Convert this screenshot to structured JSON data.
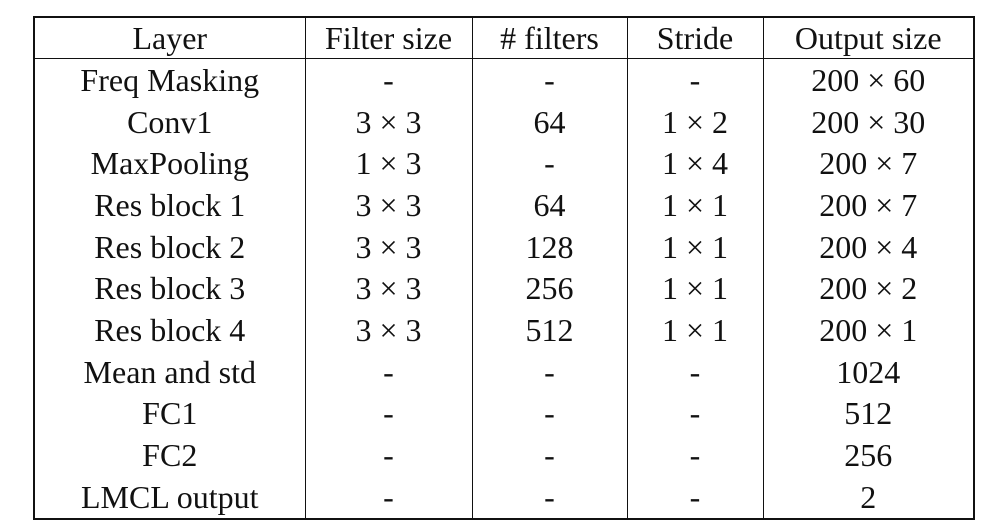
{
  "table": {
    "headers": [
      "Layer",
      "Filter size",
      "# filters",
      "Stride",
      "Output size"
    ],
    "rows": [
      [
        "Freq Masking",
        "-",
        "-",
        "-",
        "200 × 60"
      ],
      [
        "Conv1",
        "3 × 3",
        "64",
        "1 × 2",
        "200 × 30"
      ],
      [
        "MaxPooling",
        "1 × 3",
        "-",
        "1 × 4",
        "200 × 7"
      ],
      [
        "Res block 1",
        "3 × 3",
        "64",
        "1 × 1",
        "200 × 7"
      ],
      [
        "Res block 2",
        "3 × 3",
        "128",
        "1 × 1",
        "200 × 4"
      ],
      [
        "Res block 3",
        "3 × 3",
        "256",
        "1 × 1",
        "200 × 2"
      ],
      [
        "Res block 4",
        "3 × 3",
        "512",
        "1 × 1",
        "200 × 1"
      ],
      [
        "Mean and std",
        "-",
        "-",
        "-",
        "1024"
      ],
      [
        "FC1",
        "-",
        "-",
        "-",
        "512"
      ],
      [
        "FC2",
        "-",
        "-",
        "-",
        "256"
      ],
      [
        "LMCL output",
        "-",
        "-",
        "-",
        "2"
      ]
    ]
  }
}
